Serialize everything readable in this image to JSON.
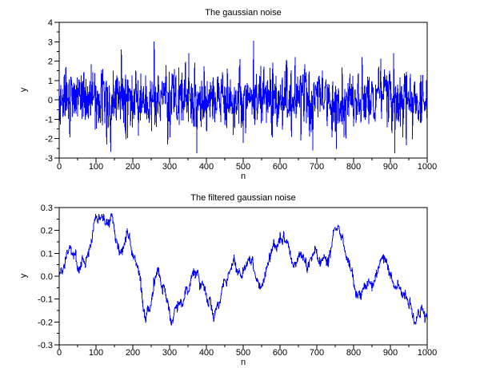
{
  "figure": {
    "background": "#ffffff",
    "axis_color": "#000000",
    "line_color": "#0000ff"
  },
  "chart_data": [
    {
      "type": "line",
      "title": "The gaussian noise",
      "xlabel": "n",
      "ylabel": "y",
      "xlim": [
        0,
        1000
      ],
      "ylim": [
        -3,
        4
      ],
      "grid": false,
      "legend": null,
      "xticks": [
        0,
        100,
        200,
        300,
        400,
        500,
        600,
        700,
        800,
        900,
        1000
      ],
      "xtick_labels": [
        "0",
        "100",
        "200",
        "300",
        "400",
        "500",
        "600",
        "700",
        "800",
        "900",
        "1000"
      ],
      "yticks": [
        4,
        3,
        2,
        1,
        0,
        -1,
        -2,
        -3
      ],
      "ytick_labels": [
        "4",
        "3",
        "2",
        "1",
        "0",
        "-1",
        "-2",
        "-3"
      ],
      "x_minor_per_interval": 1,
      "y_minor_per_interval": 1,
      "line_color": "#0000ff",
      "series": [
        {
          "id": "gaussian-noise-line",
          "name": "gaussian noise",
          "generator": {
            "kind": "gaussian",
            "n": 1000,
            "mean": 0,
            "sigma": 0.82,
            "seed": 123456789,
            "clip_min": -2.78,
            "clip_max": 3.12,
            "landmarks": [
              [
                258,
                3.02
              ],
              [
                352,
                2.42
              ],
              [
                528,
                3.06
              ],
              [
                689,
                -2.6
              ],
              [
                912,
                -2.75
              ]
            ]
          }
        }
      ]
    },
    {
      "type": "line",
      "title": "The filtered gaussian noise",
      "xlabel": "n",
      "ylabel": "y",
      "xlim": [
        0,
        1000
      ],
      "ylim": [
        -0.3,
        0.3
      ],
      "grid": false,
      "legend": null,
      "xticks": [
        0,
        100,
        200,
        300,
        400,
        500,
        600,
        700,
        800,
        900,
        1000
      ],
      "xtick_labels": [
        "0",
        "100",
        "200",
        "300",
        "400",
        "500",
        "600",
        "700",
        "800",
        "900",
        "1000"
      ],
      "yticks": [
        0.3,
        0.2,
        0.1,
        0,
        -0.1,
        -0.2,
        -0.3
      ],
      "ytick_labels": [
        "0.3",
        "0.2",
        "0.1",
        "0.0",
        "-0.1",
        "-0.2",
        "-0.3"
      ],
      "x_minor_per_interval": 1,
      "y_minor_per_interval": 1,
      "line_color": "#0000ff",
      "series": [
        {
          "id": "filtered-noise-line",
          "name": "filtered gaussian noise",
          "jitter": {
            "sigma": 0.012,
            "seed": 24680
          },
          "clip_min": -0.215,
          "clip_max": 0.272,
          "keypoints": [
            [
              0,
              0
            ],
            [
              5,
              0.03
            ],
            [
              10,
              0.02
            ],
            [
              15,
              0.05
            ],
            [
              20,
              0.09
            ],
            [
              25,
              0.11
            ],
            [
              30,
              0.14
            ],
            [
              35,
              0.1
            ],
            [
              40,
              0.08
            ],
            [
              45,
              0.1
            ],
            [
              50,
              0.04
            ],
            [
              55,
              0.02
            ],
            [
              60,
              0.05
            ],
            [
              65,
              0.08
            ],
            [
              70,
              0.06
            ],
            [
              75,
              0.08
            ],
            [
              80,
              0.11
            ],
            [
              85,
              0.13
            ],
            [
              90,
              0.18
            ],
            [
              95,
              0.23
            ],
            [
              100,
              0.26
            ],
            [
              105,
              0.24
            ],
            [
              110,
              0.26
            ],
            [
              115,
              0.25
            ],
            [
              120,
              0.27
            ],
            [
              125,
              0.22
            ],
            [
              130,
              0.24
            ],
            [
              135,
              0.23
            ],
            [
              140,
              0.27
            ],
            [
              145,
              0.25
            ],
            [
              150,
              0.2
            ],
            [
              155,
              0.16
            ],
            [
              160,
              0.12
            ],
            [
              165,
              0.1
            ],
            [
              170,
              0.11
            ],
            [
              175,
              0.13
            ],
            [
              180,
              0.16
            ],
            [
              185,
              0.2
            ],
            [
              190,
              0.17
            ],
            [
              195,
              0.13
            ],
            [
              200,
              0.09
            ],
            [
              205,
              0.08
            ],
            [
              210,
              0.05
            ],
            [
              215,
              0.03
            ],
            [
              220,
              0
            ],
            [
              225,
              -0.08
            ],
            [
              230,
              -0.16
            ],
            [
              235,
              -0.19
            ],
            [
              240,
              -0.14
            ],
            [
              245,
              -0.15
            ],
            [
              250,
              -0.11
            ],
            [
              255,
              -0.07
            ],
            [
              260,
              -0.02
            ],
            [
              265,
              0.02
            ],
            [
              270,
              0.03
            ],
            [
              275,
              -0.02
            ],
            [
              280,
              -0.06
            ],
            [
              285,
              -0.05
            ],
            [
              290,
              -0.08
            ],
            [
              295,
              -0.12
            ],
            [
              300,
              -0.16
            ],
            [
              305,
              -0.21
            ],
            [
              310,
              -0.18
            ],
            [
              315,
              -0.14
            ],
            [
              320,
              -0.13
            ],
            [
              325,
              -0.12
            ],
            [
              330,
              -0.11
            ],
            [
              335,
              -0.13
            ],
            [
              340,
              -0.08
            ],
            [
              345,
              -0.05
            ],
            [
              350,
              -0.07
            ],
            [
              355,
              -0.04
            ],
            [
              360,
              -0.01
            ],
            [
              365,
              0.02
            ],
            [
              370,
              0
            ],
            [
              375,
              0.02
            ],
            [
              380,
              -0.02
            ],
            [
              385,
              -0.05
            ],
            [
              390,
              -0.03
            ],
            [
              395,
              -0.06
            ],
            [
              400,
              -0.09
            ],
            [
              405,
              -0.13
            ],
            [
              410,
              -0.11
            ],
            [
              415,
              -0.14
            ],
            [
              420,
              -0.19
            ],
            [
              425,
              -0.15
            ],
            [
              430,
              -0.13
            ],
            [
              435,
              -0.12
            ],
            [
              440,
              -0.08
            ],
            [
              445,
              -0.05
            ],
            [
              450,
              -0.01
            ],
            [
              455,
              -0.03
            ],
            [
              460,
              0.01
            ],
            [
              465,
              0.03
            ],
            [
              470,
              0.05
            ],
            [
              475,
              0.07
            ],
            [
              480,
              0.04
            ],
            [
              485,
              0.01
            ],
            [
              490,
              0.03
            ],
            [
              495,
              -0.01
            ],
            [
              500,
              0.02
            ],
            [
              505,
              0.04
            ],
            [
              510,
              0.06
            ],
            [
              515,
              0.08
            ],
            [
              520,
              0.05
            ],
            [
              525,
              0.08
            ],
            [
              530,
              0.02
            ],
            [
              535,
              -0.01
            ],
            [
              540,
              -0.03
            ],
            [
              545,
              -0.04
            ],
            [
              550,
              -0.05
            ],
            [
              555,
              -0.03
            ],
            [
              560,
              0.01
            ],
            [
              565,
              0.04
            ],
            [
              570,
              0.08
            ],
            [
              575,
              0.1
            ],
            [
              580,
              0.13
            ],
            [
              585,
              0.15
            ],
            [
              590,
              0.12
            ],
            [
              595,
              0.14
            ],
            [
              600,
              0.17
            ],
            [
              605,
              0.15
            ],
            [
              610,
              0.18
            ],
            [
              615,
              0.14
            ],
            [
              620,
              0.16
            ],
            [
              625,
              0.12
            ],
            [
              630,
              0.08
            ],
            [
              635,
              0.05
            ],
            [
              640,
              0.04
            ],
            [
              645,
              0.06
            ],
            [
              650,
              0.08
            ],
            [
              655,
              0.1
            ],
            [
              660,
              0.09
            ],
            [
              665,
              0.07
            ],
            [
              670,
              0.05
            ],
            [
              675,
              0.03
            ],
            [
              680,
              0.06
            ],
            [
              685,
              0.08
            ],
            [
              690,
              0.1
            ],
            [
              695,
              0.12
            ],
            [
              700,
              0.1
            ],
            [
              705,
              0.07
            ],
            [
              710,
              0.05
            ],
            [
              715,
              0.07
            ],
            [
              720,
              0.09
            ],
            [
              725,
              0.08
            ],
            [
              730,
              0.06
            ],
            [
              735,
              0.09
            ],
            [
              740,
              0.13
            ],
            [
              745,
              0.19
            ],
            [
              750,
              0.21
            ],
            [
              755,
              0.2
            ],
            [
              760,
              0.22
            ],
            [
              765,
              0.19
            ],
            [
              770,
              0.16
            ],
            [
              775,
              0.12
            ],
            [
              780,
              0.09
            ],
            [
              785,
              0.07
            ],
            [
              790,
              0.05
            ],
            [
              795,
              0.02
            ],
            [
              800,
              -0.02
            ],
            [
              805,
              -0.07
            ],
            [
              810,
              -0.1
            ],
            [
              815,
              -0.06
            ],
            [
              820,
              -0.09
            ],
            [
              825,
              -0.05
            ],
            [
              830,
              -0.03
            ],
            [
              835,
              -0.04
            ],
            [
              840,
              -0.02
            ],
            [
              845,
              -0.03
            ],
            [
              850,
              -0.05
            ],
            [
              855,
              -0.03
            ],
            [
              860,
              0
            ],
            [
              865,
              0.02
            ],
            [
              870,
              0.05
            ],
            [
              875,
              0.08
            ],
            [
              880,
              0.1
            ],
            [
              885,
              0.08
            ],
            [
              890,
              0.06
            ],
            [
              895,
              0.03
            ],
            [
              900,
              0
            ],
            [
              905,
              -0.02
            ],
            [
              910,
              -0.04
            ],
            [
              915,
              -0.06
            ],
            [
              920,
              -0.03
            ],
            [
              925,
              -0.05
            ],
            [
              930,
              -0.07
            ],
            [
              935,
              -0.09
            ],
            [
              940,
              -0.08
            ],
            [
              945,
              -0.11
            ],
            [
              950,
              -0.13
            ],
            [
              955,
              -0.12
            ],
            [
              960,
              -0.16
            ],
            [
              965,
              -0.2
            ],
            [
              970,
              -0.21
            ],
            [
              975,
              -0.16
            ],
            [
              980,
              -0.18
            ],
            [
              985,
              -0.13
            ],
            [
              990,
              -0.16
            ],
            [
              995,
              -0.19
            ],
            [
              1000,
              -0.17
            ]
          ]
        }
      ]
    }
  ]
}
